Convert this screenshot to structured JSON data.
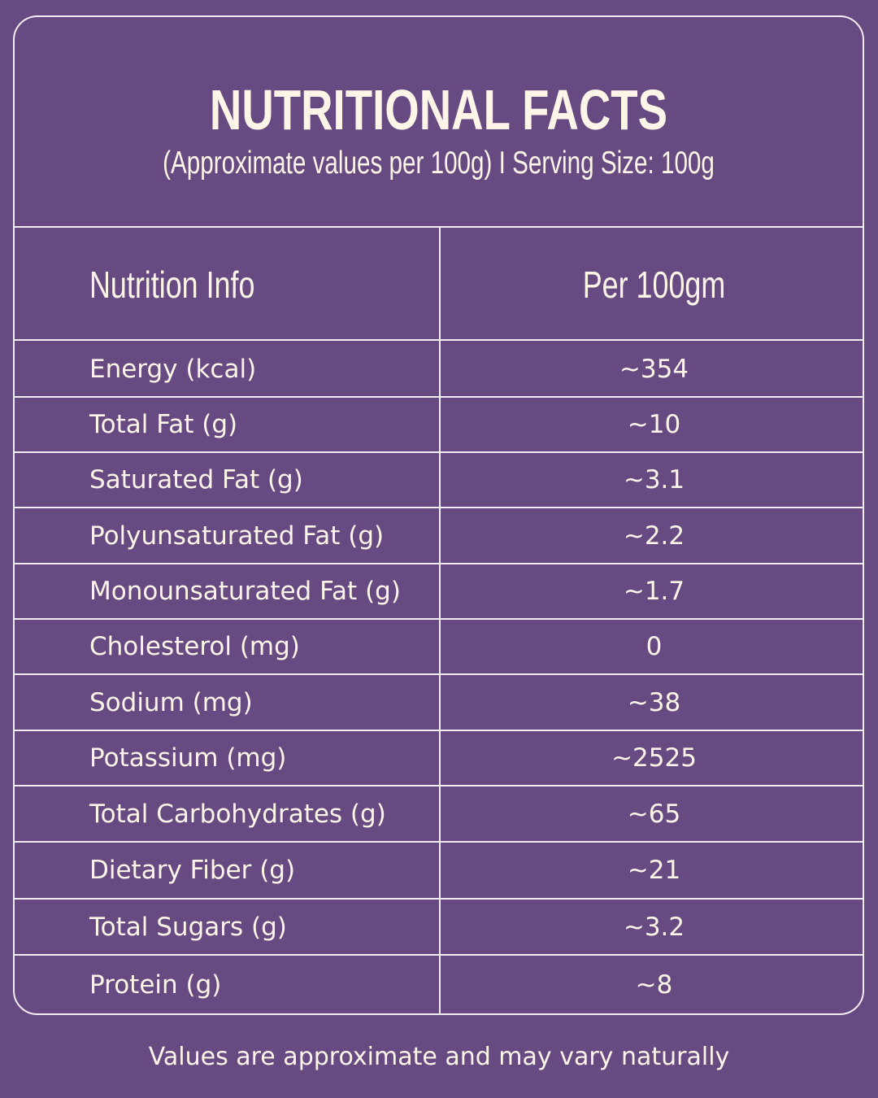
{
  "header": {
    "title": "NUTRITIONAL FACTS",
    "subtitle": "(Approximate values per 100g) I Serving Size: 100g"
  },
  "table": {
    "columns": [
      "Nutrition Info",
      "Per 100gm"
    ],
    "rows": [
      {
        "nutrient": "Energy (kcal)",
        "value": "~354"
      },
      {
        "nutrient": "Total Fat (g)",
        "value": "~10"
      },
      {
        "nutrient": "Saturated Fat (g)",
        "value": "~3.1"
      },
      {
        "nutrient": "Polyunsaturated Fat (g)",
        "value": "~2.2"
      },
      {
        "nutrient": "Monounsaturated Fat (g)",
        "value": "~1.7"
      },
      {
        "nutrient": "Cholesterol (mg)",
        "value": "0"
      },
      {
        "nutrient": "Sodium (mg)",
        "value": "~38"
      },
      {
        "nutrient": "Potassium (mg)",
        "value": "~2525"
      },
      {
        "nutrient": "Total Carbohydrates (g)",
        "value": "~65"
      },
      {
        "nutrient": "Dietary Fiber (g)",
        "value": "~21"
      },
      {
        "nutrient": "Total Sugars (g)",
        "value": "~3.2"
      },
      {
        "nutrient": "Protein (g)",
        "value": "~8"
      }
    ]
  },
  "footnote": "Values are approximate and may vary naturally",
  "colors": {
    "background": "#674a81",
    "text": "#fdf6e8",
    "lines": "#f2ecf3"
  }
}
